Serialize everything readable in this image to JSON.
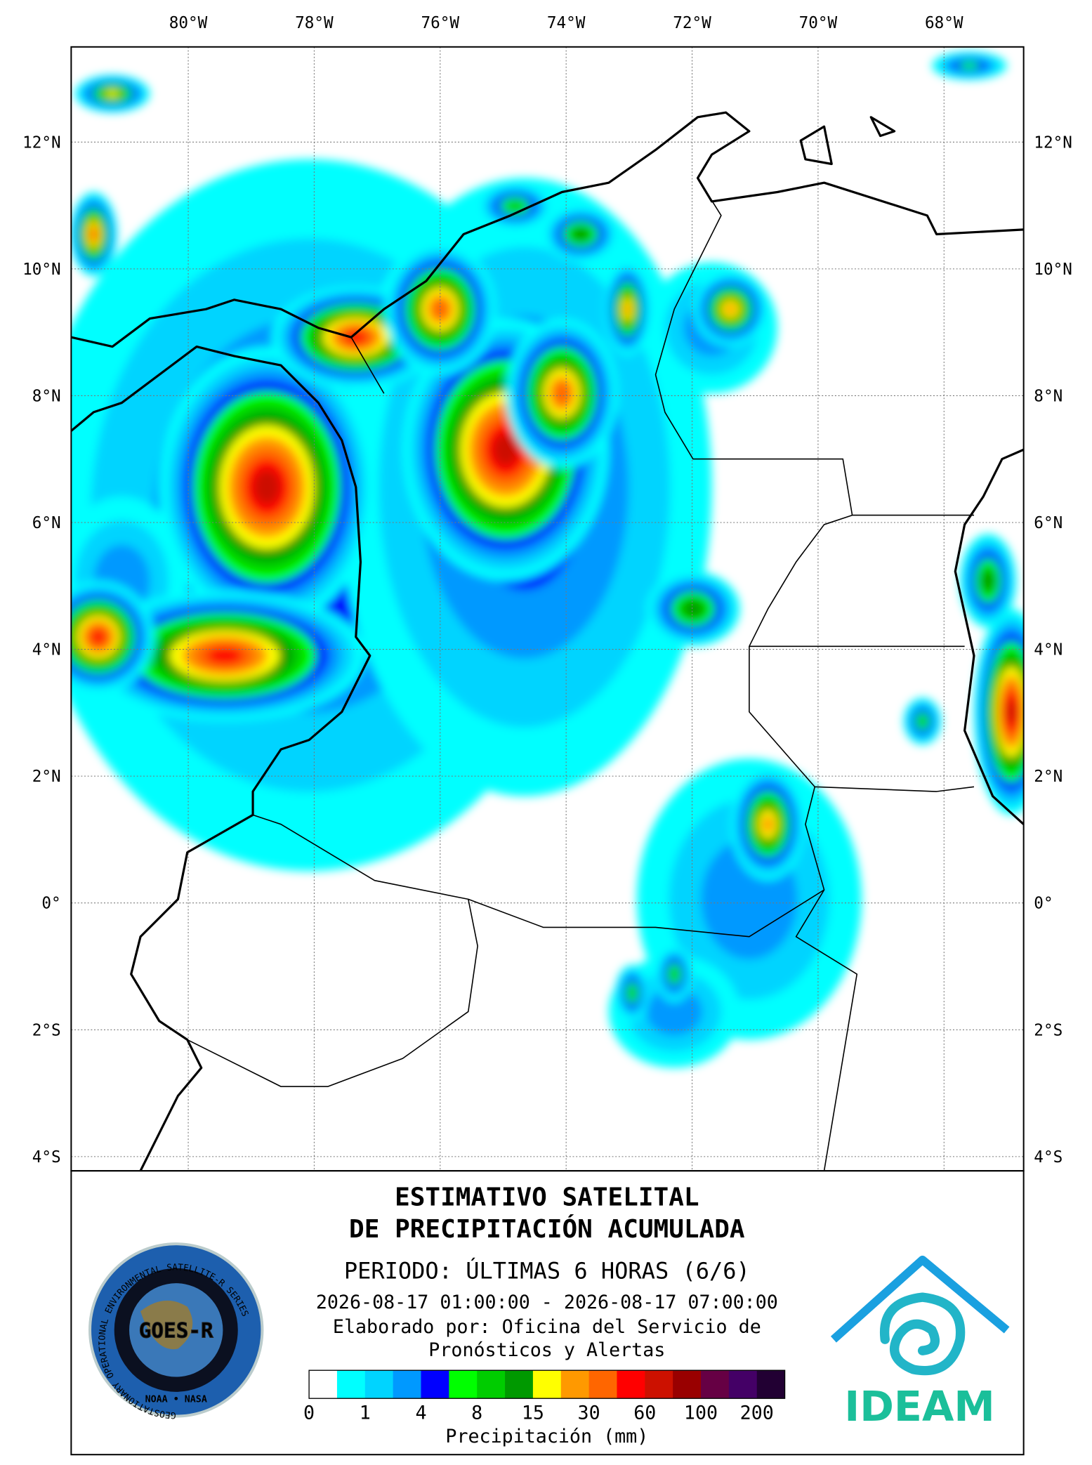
{
  "map": {
    "lon_ticks": [
      {
        "value": -80,
        "label": "80°W"
      },
      {
        "value": -78,
        "label": "78°W"
      },
      {
        "value": -76,
        "label": "76°W"
      },
      {
        "value": -74,
        "label": "74°W"
      },
      {
        "value": -72,
        "label": "72°W"
      },
      {
        "value": -70,
        "label": "70°W"
      },
      {
        "value": -68,
        "label": "68°W"
      }
    ],
    "lat_ticks": [
      {
        "value": 12,
        "label": "12°N"
      },
      {
        "value": 10,
        "label": "10°N"
      },
      {
        "value": 8,
        "label": "8°N"
      },
      {
        "value": 6,
        "label": "6°N"
      },
      {
        "value": 4,
        "label": "4°N"
      },
      {
        "value": 2,
        "label": "2°N"
      },
      {
        "value": 0,
        "label": "0°"
      },
      {
        "value": -2,
        "label": "2°S"
      },
      {
        "value": -4,
        "label": "4°S"
      }
    ]
  },
  "legend": {
    "title": [
      "ESTIMATIVO SATELITAL",
      "DE PRECIPITACIÓN ACUMULADA"
    ],
    "period": "PERIODO: ÚLTIMAS 6 HORAS (6/6)",
    "dates": "2026-08-17 01:00:00 - 2026-08-17 07:00:00",
    "credit": [
      "Elaborado por: Oficina del Servicio de",
      "Pronósticos y Alertas"
    ],
    "colorbar": {
      "colors": [
        "#ffffff",
        "#00ffff",
        "#00d4ff",
        "#0099ff",
        "#0000ff",
        "#00ff00",
        "#00cc00",
        "#009900",
        "#ffff00",
        "#ff9900",
        "#ff6600",
        "#ff0000",
        "#cc1100",
        "#990000",
        "#660044",
        "#440066",
        "#220033"
      ],
      "ticks": [
        0,
        1,
        4,
        8,
        15,
        30,
        60,
        100,
        200
      ],
      "label": "Precipitación (mm)"
    }
  },
  "logos": {
    "goes": "GOES-R",
    "goes_ring": "GEOSTATIONARY OPERATIONAL ENVIRONMENTAL SATELLITE-R SERIES",
    "agencies": "NOAA • NASA",
    "ideam": "IDEAM"
  }
}
